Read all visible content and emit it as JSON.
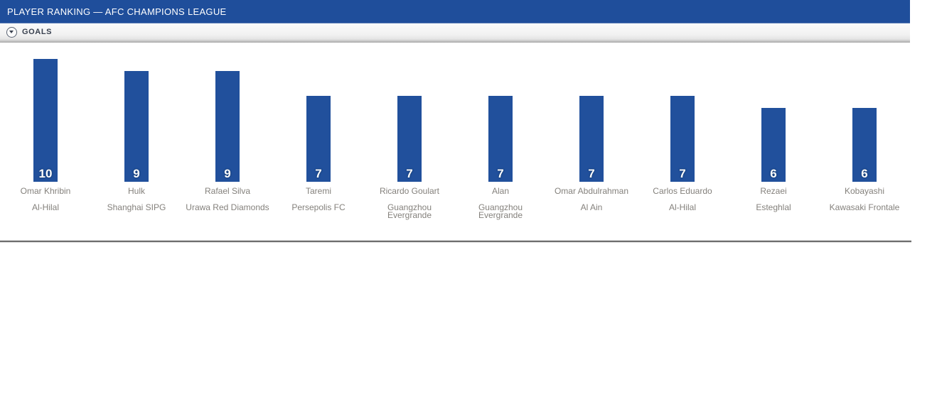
{
  "header": {
    "title": "PLAYER RANKING — AFC CHAMPIONS LEAGUE",
    "background_color": "#1f4e9b",
    "text_color": "#ffffff"
  },
  "section": {
    "label": "GOALS",
    "toggle_icon": "circle-caret-down-icon",
    "label_color": "#39414f"
  },
  "chart_data": {
    "type": "bar",
    "title": "PLAYER RANKING — AFC CHAMPIONS LEAGUE",
    "metric_label": "GOALS",
    "orientation": "vertical",
    "categories": [
      "Omar Khribin",
      "Hulk",
      "Rafael Silva",
      "Taremi",
      "Ricardo Goulart",
      "Alan",
      "Omar Abdulrahman",
      "Carlos Eduardo",
      "Rezaei",
      "Kobayashi"
    ],
    "teams": [
      "Al-Hilal",
      "Shanghai SIPG",
      "Urawa Red Diamonds",
      "Persepolis FC",
      "Guangzhou Evergrande",
      "Guangzhou Evergrande",
      "Al Ain",
      "Al-Hilal",
      "Esteghlal",
      "Kawasaki Frontale"
    ],
    "values": [
      10,
      9,
      9,
      7,
      7,
      7,
      7,
      7,
      6,
      6
    ],
    "ylim": [
      0,
      10
    ],
    "grid": false,
    "legend": false,
    "bar_color": "#21509c",
    "value_label_color": "#ffffff",
    "value_label_position": "inside-bottom",
    "category_label_color": "#84817c"
  }
}
